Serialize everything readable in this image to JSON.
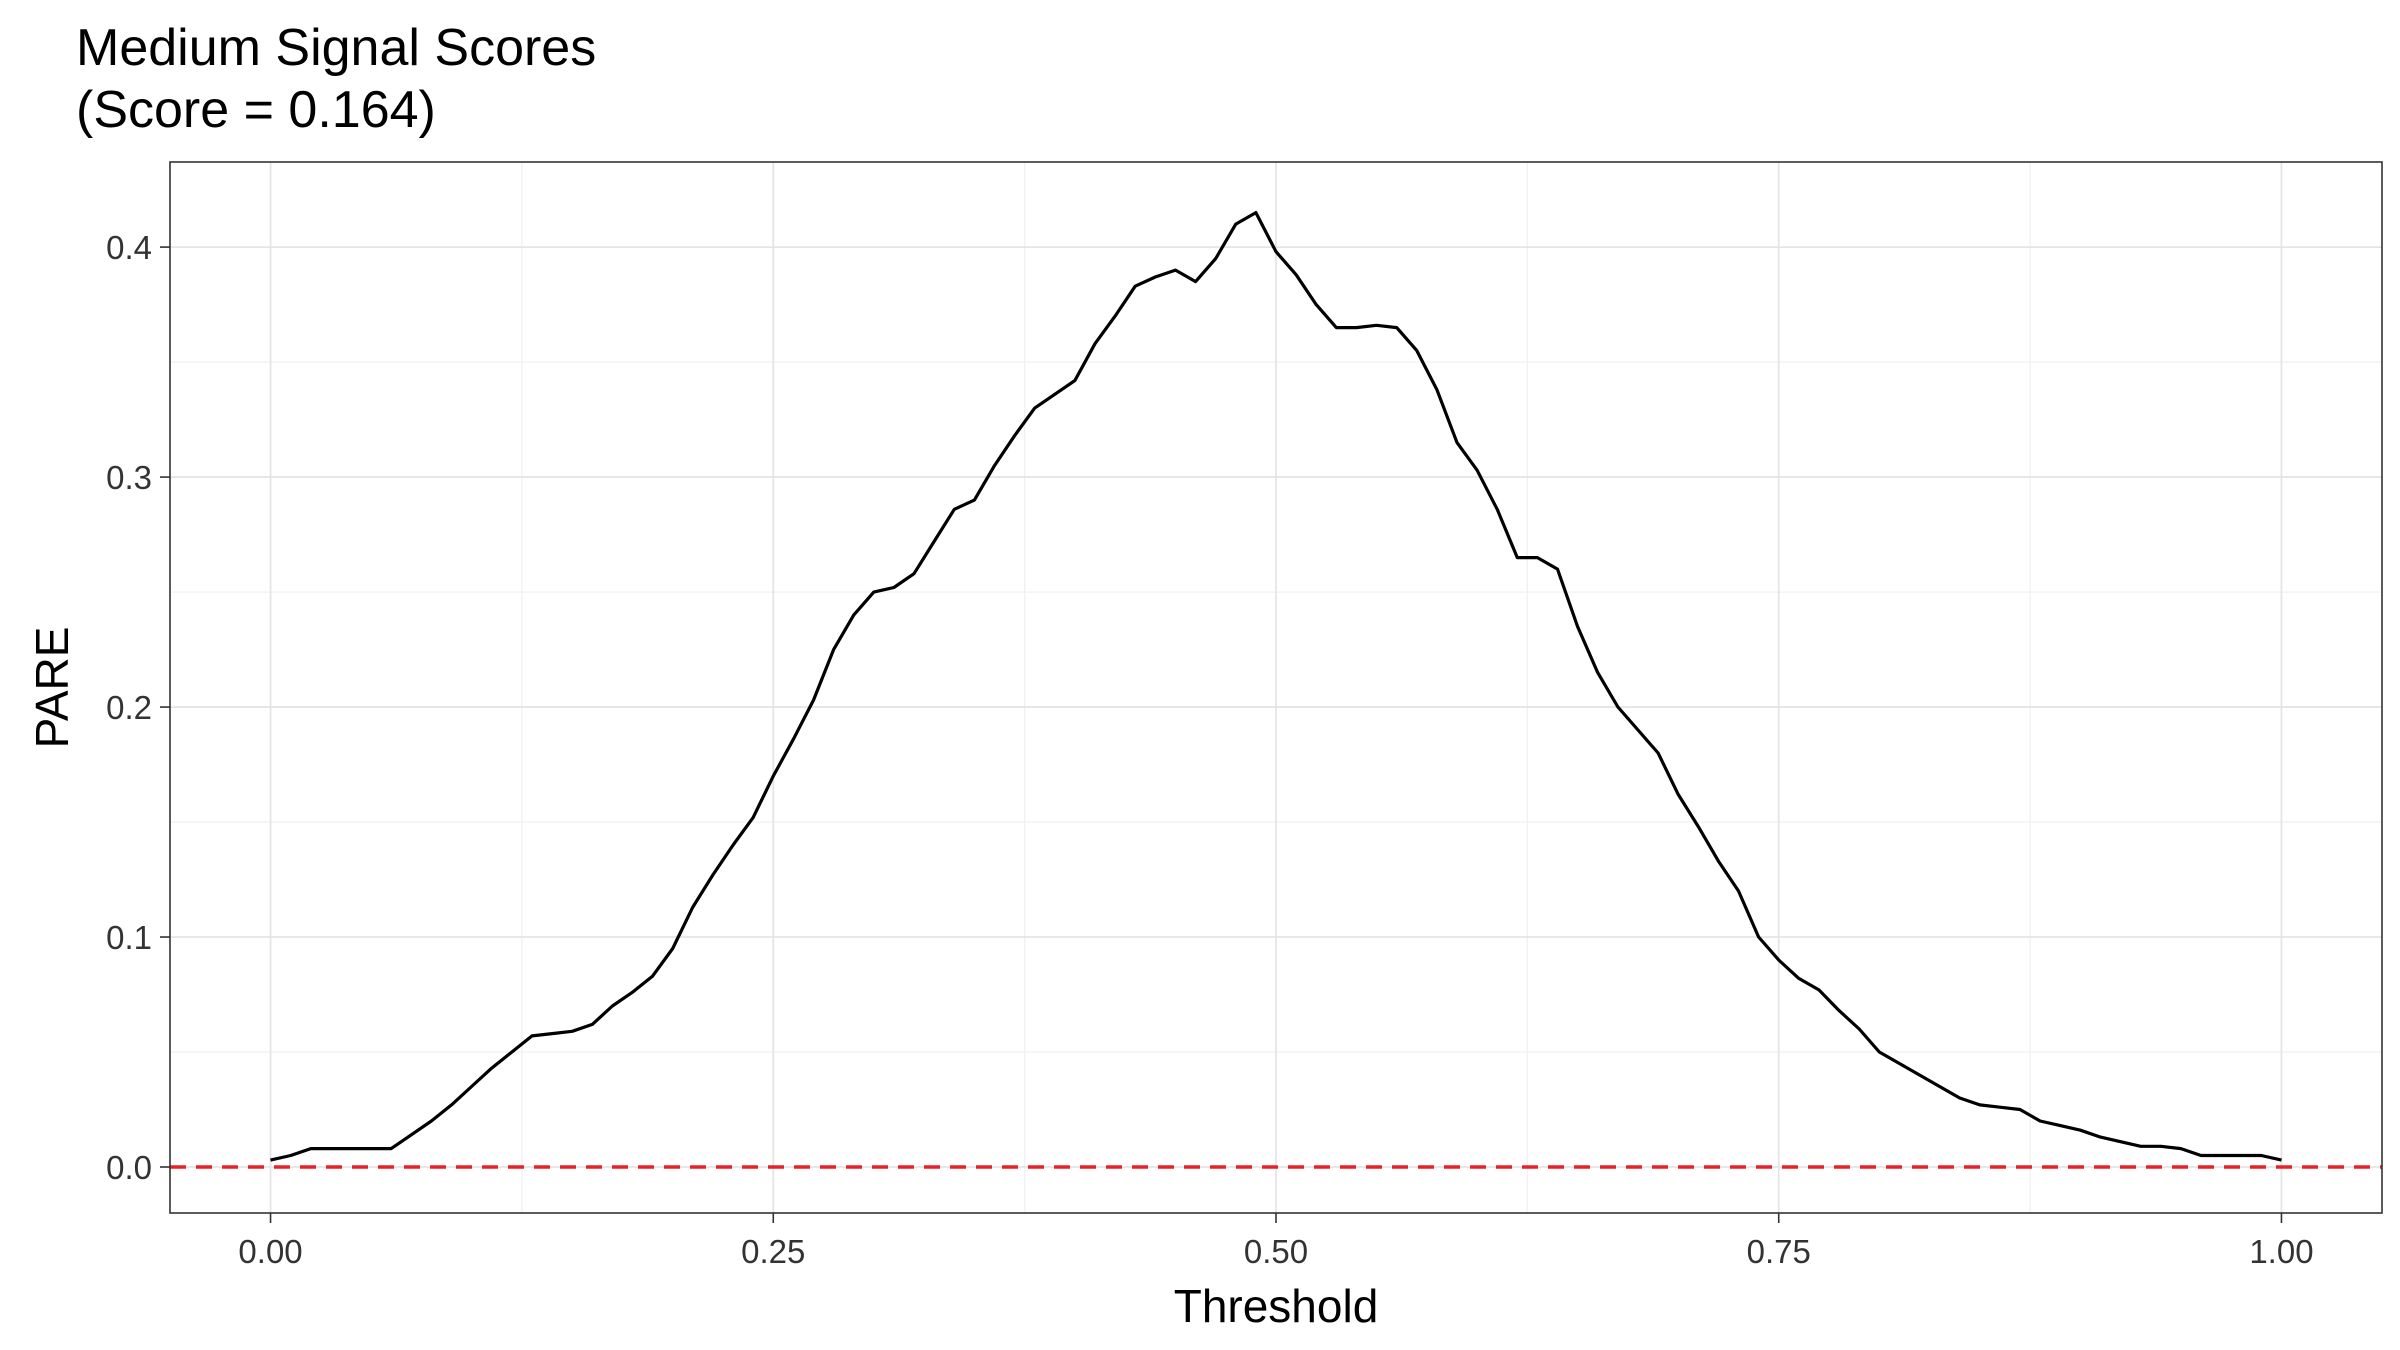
{
  "chart_data": {
    "type": "line",
    "title": "Medium Signal Scores",
    "subtitle": "(Score = 0.164)",
    "xlabel": "Threshold",
    "ylabel": "PARE",
    "xlim": [
      -0.05,
      1.05
    ],
    "ylim": [
      -0.02,
      0.437
    ],
    "x_ticks": [
      0.0,
      0.25,
      0.5,
      0.75,
      1.0
    ],
    "x_tick_labels": [
      "0.00",
      "0.25",
      "0.50",
      "0.75",
      "1.00"
    ],
    "y_ticks": [
      0.0,
      0.1,
      0.2,
      0.3,
      0.4
    ],
    "y_tick_labels": [
      "0.0",
      "0.1",
      "0.2",
      "0.3",
      "0.4"
    ],
    "grid": true,
    "reference_line": {
      "y": 0.0,
      "style": "dashed",
      "color": "#e8202a"
    },
    "series": [
      {
        "color": "#000000",
        "x": [
          0.0,
          0.01,
          0.02,
          0.04,
          0.06,
          0.07,
          0.08,
          0.09,
          0.1,
          0.11,
          0.12,
          0.13,
          0.14,
          0.15,
          0.16,
          0.17,
          0.18,
          0.19,
          0.2,
          0.21,
          0.22,
          0.23,
          0.24,
          0.25,
          0.26,
          0.27,
          0.28,
          0.29,
          0.3,
          0.31,
          0.32,
          0.33,
          0.34,
          0.35,
          0.36,
          0.37,
          0.38,
          0.39,
          0.4,
          0.41,
          0.42,
          0.43,
          0.44,
          0.45,
          0.46,
          0.47,
          0.48,
          0.49,
          0.5,
          0.51,
          0.52,
          0.53,
          0.54,
          0.55,
          0.56,
          0.57,
          0.58,
          0.59,
          0.6,
          0.61,
          0.62,
          0.63,
          0.64,
          0.65,
          0.66,
          0.67,
          0.68,
          0.69,
          0.7,
          0.71,
          0.72,
          0.73,
          0.74,
          0.75,
          0.76,
          0.77,
          0.78,
          0.79,
          0.8,
          0.81,
          0.82,
          0.83,
          0.84,
          0.85,
          0.86,
          0.87,
          0.88,
          0.89,
          0.9,
          0.91,
          0.92,
          0.93,
          0.94,
          0.95,
          0.96,
          0.97,
          0.98,
          0.99,
          1.0
        ],
        "values": [
          0.003,
          0.005,
          0.008,
          0.008,
          0.008,
          0.014,
          0.02,
          0.027,
          0.035,
          0.043,
          0.05,
          0.057,
          0.058,
          0.059,
          0.062,
          0.07,
          0.076,
          0.083,
          0.095,
          0.113,
          0.127,
          0.14,
          0.152,
          0.17,
          0.186,
          0.203,
          0.225,
          0.24,
          0.25,
          0.252,
          0.258,
          0.272,
          0.286,
          0.29,
          0.305,
          0.318,
          0.33,
          0.336,
          0.342,
          0.358,
          0.37,
          0.383,
          0.387,
          0.39,
          0.385,
          0.395,
          0.41,
          0.415,
          0.398,
          0.388,
          0.375,
          0.365,
          0.365,
          0.366,
          0.365,
          0.355,
          0.338,
          0.315,
          0.303,
          0.286,
          0.265,
          0.265,
          0.26,
          0.235,
          0.215,
          0.2,
          0.19,
          0.18,
          0.162,
          0.148,
          0.133,
          0.12,
          0.1,
          0.09,
          0.082,
          0.077,
          0.068,
          0.06,
          0.05,
          0.045,
          0.04,
          0.035,
          0.03,
          0.027,
          0.026,
          0.025,
          0.02,
          0.018,
          0.016,
          0.013,
          0.011,
          0.009,
          0.009,
          0.008,
          0.005,
          0.005,
          0.005,
          0.005,
          0.003
        ]
      }
    ]
  }
}
